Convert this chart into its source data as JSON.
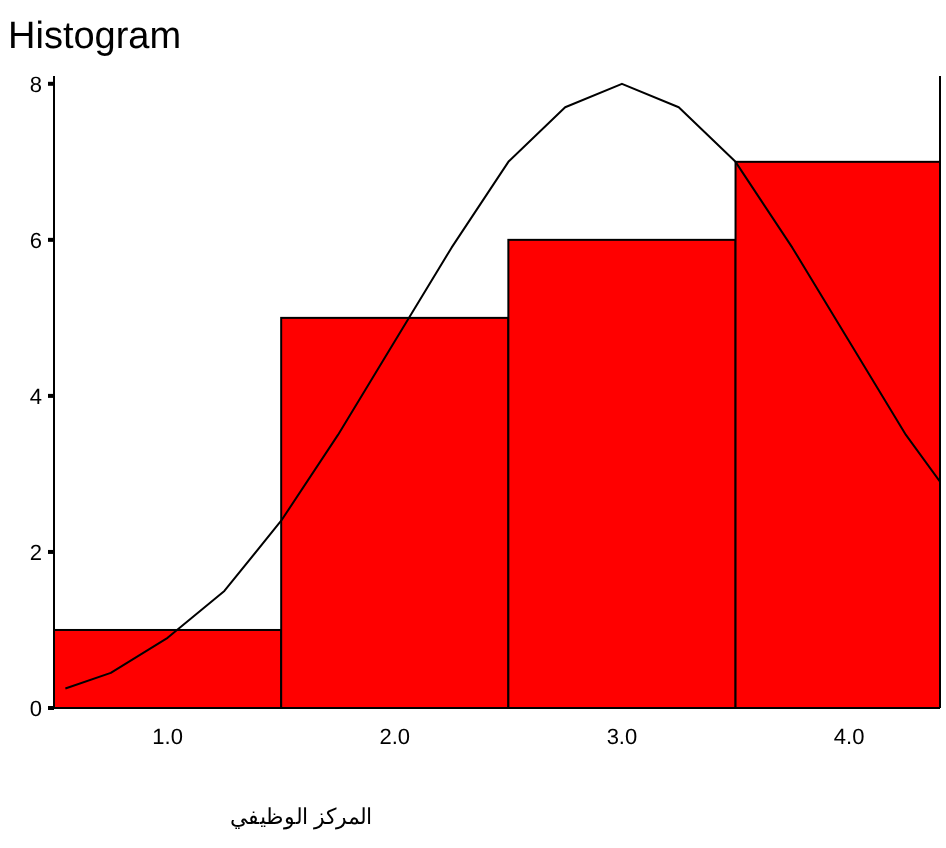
{
  "chart_data": {
    "type": "histogram",
    "title": "Histogram",
    "xlabel": "المركز الوظيفي",
    "bins": [
      0.5,
      1.5,
      2.5,
      3.5,
      4.5
    ],
    "values": [
      1,
      5,
      6,
      7
    ],
    "color": "#ff0000",
    "series": [
      {
        "type": "line",
        "color": "#000000",
        "x": [
          0.55,
          0.75,
          1.0,
          1.25,
          1.5,
          1.75,
          2.0,
          2.25,
          2.5,
          2.75,
          3.0,
          3.25,
          3.5,
          3.75,
          4.0,
          4.25,
          4.4
        ],
        "values": [
          0.25,
          0.45,
          0.9,
          1.5,
          2.4,
          3.5,
          4.7,
          5.9,
          7.0,
          7.7,
          8.0,
          7.7,
          7.0,
          5.9,
          4.7,
          3.5,
          2.9
        ]
      }
    ],
    "xlim": [
      0.5,
      4.4
    ],
    "ylim": [
      0,
      8.1
    ],
    "xticks": [
      {
        "value": 1,
        "label": "1.0"
      },
      {
        "value": 2,
        "label": "2.0"
      },
      {
        "value": 3,
        "label": "3.0"
      },
      {
        "value": 4,
        "label": "4.0"
      }
    ],
    "yticks": [
      0,
      2,
      4,
      6,
      8
    ],
    "grid": false
  }
}
